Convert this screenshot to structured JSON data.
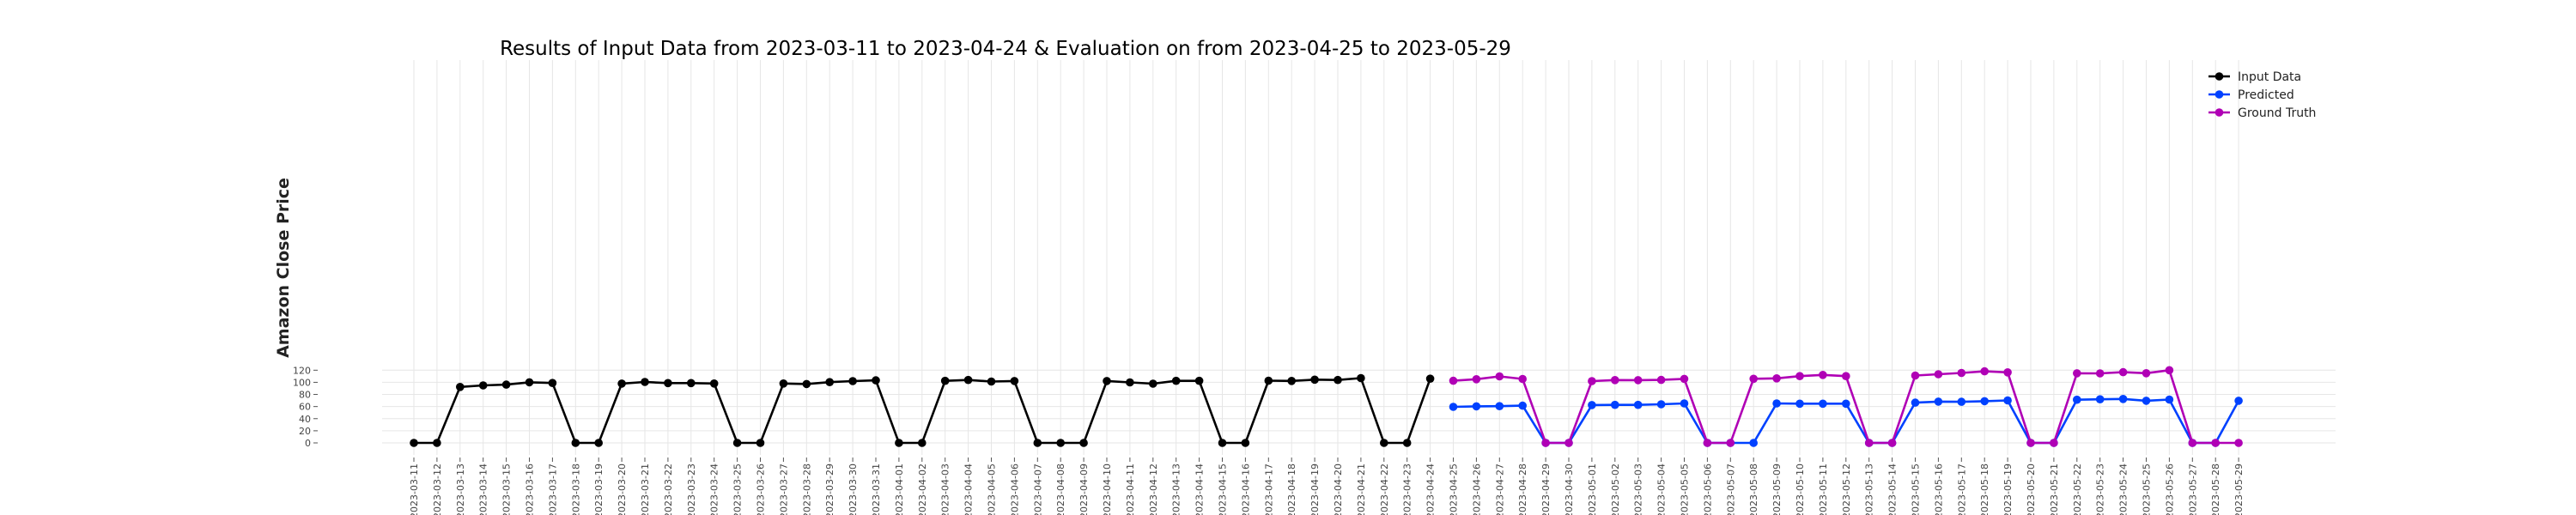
{
  "chart_data": {
    "type": "line",
    "title": "Results of Input Data from 2023-03-11 to 2023-04-24 & Evaluation on from 2023-04-25 to 2023-05-29",
    "ylabel": "Amazon Close Price",
    "xlabel": "",
    "ylim": [
      -5,
      126
    ],
    "yticks": [
      0,
      20,
      40,
      60,
      80,
      100,
      120
    ],
    "grid": true,
    "legend_position": "top-right",
    "categories": [
      "2023-03-11",
      "2023-03-12",
      "2023-03-13",
      "2023-03-14",
      "2023-03-15",
      "2023-03-16",
      "2023-03-17",
      "2023-03-18",
      "2023-03-19",
      "2023-03-20",
      "2023-03-21",
      "2023-03-22",
      "2023-03-23",
      "2023-03-24",
      "2023-03-25",
      "2023-03-26",
      "2023-03-27",
      "2023-03-28",
      "2023-03-29",
      "2023-03-30",
      "2023-03-31",
      "2023-04-01",
      "2023-04-02",
      "2023-04-03",
      "2023-04-04",
      "2023-04-05",
      "2023-04-06",
      "2023-04-07",
      "2023-04-08",
      "2023-04-09",
      "2023-04-10",
      "2023-04-11",
      "2023-04-12",
      "2023-04-13",
      "2023-04-14",
      "2023-04-15",
      "2023-04-16",
      "2023-04-17",
      "2023-04-18",
      "2023-04-19",
      "2023-04-20",
      "2023-04-21",
      "2023-04-22",
      "2023-04-23",
      "2023-04-24",
      "2023-04-25",
      "2023-04-26",
      "2023-04-27",
      "2023-04-28",
      "2023-04-29",
      "2023-04-30",
      "2023-05-01",
      "2023-05-02",
      "2023-05-03",
      "2023-05-04",
      "2023-05-05",
      "2023-05-06",
      "2023-05-07",
      "2023-05-08",
      "2023-05-09",
      "2023-05-10",
      "2023-05-11",
      "2023-05-12",
      "2023-05-13",
      "2023-05-14",
      "2023-05-15",
      "2023-05-16",
      "2023-05-17",
      "2023-05-18",
      "2023-05-19",
      "2023-05-20",
      "2023-05-21",
      "2023-05-22",
      "2023-05-23",
      "2023-05-24",
      "2023-05-25",
      "2023-05-26",
      "2023-05-27",
      "2023-05-28",
      "2023-05-29"
    ],
    "series": [
      {
        "name": "Input Data",
        "color": "#000000",
        "x": [
          "2023-03-11",
          "2023-03-12",
          "2023-03-13",
          "2023-03-14",
          "2023-03-15",
          "2023-03-16",
          "2023-03-17",
          "2023-03-18",
          "2023-03-19",
          "2023-03-20",
          "2023-03-21",
          "2023-03-22",
          "2023-03-23",
          "2023-03-24",
          "2023-03-25",
          "2023-03-26",
          "2023-03-27",
          "2023-03-28",
          "2023-03-29",
          "2023-03-30",
          "2023-03-31",
          "2023-04-01",
          "2023-04-02",
          "2023-04-03",
          "2023-04-04",
          "2023-04-05",
          "2023-04-06",
          "2023-04-07",
          "2023-04-08",
          "2023-04-09",
          "2023-04-10",
          "2023-04-11",
          "2023-04-12",
          "2023-04-13",
          "2023-04-14",
          "2023-04-15",
          "2023-04-16",
          "2023-04-17",
          "2023-04-18",
          "2023-04-19",
          "2023-04-20",
          "2023-04-21",
          "2023-04-22",
          "2023-04-23",
          "2023-04-24"
        ],
        "values": [
          0,
          0,
          92.4,
          94.9,
          96.2,
          100.0,
          98.9,
          0,
          0,
          97.9,
          100.6,
          98.8,
          98.7,
          98.1,
          0,
          0,
          98.0,
          97.2,
          100.3,
          102.0,
          103.3,
          0,
          0,
          102.4,
          103.9,
          101.3,
          102.1,
          0,
          0,
          0,
          102.2,
          99.9,
          97.8,
          102.4,
          102.5,
          0,
          0,
          102.7,
          102.3,
          104.4,
          103.8,
          106.9,
          0,
          0,
          106.0
        ]
      },
      {
        "name": "Predicted",
        "color": "#0041ff",
        "x": [
          "2023-04-25",
          "2023-04-26",
          "2023-04-27",
          "2023-04-28",
          "2023-04-29",
          "2023-04-30",
          "2023-05-01",
          "2023-05-02",
          "2023-05-03",
          "2023-05-04",
          "2023-05-05",
          "2023-05-06",
          "2023-05-07",
          "2023-05-08",
          "2023-05-09",
          "2023-05-10",
          "2023-05-11",
          "2023-05-12",
          "2023-05-13",
          "2023-05-14",
          "2023-05-15",
          "2023-05-16",
          "2023-05-17",
          "2023-05-18",
          "2023-05-19",
          "2023-05-20",
          "2023-05-21",
          "2023-05-22",
          "2023-05-23",
          "2023-05-24",
          "2023-05-25",
          "2023-05-26",
          "2023-05-27",
          "2023-05-28",
          "2023-05-29"
        ],
        "values": [
          59.5,
          60.4,
          60.6,
          61.5,
          0,
          0,
          62.5,
          62.7,
          62.8,
          63.7,
          65.2,
          0,
          0,
          0,
          65.2,
          64.8,
          64.7,
          64.7,
          0,
          0,
          66.4,
          68.2,
          67.8,
          68.9,
          70.2,
          0,
          0,
          71.2,
          72.0,
          72.6,
          69.6,
          71.6,
          0,
          0,
          69.6
        ]
      },
      {
        "name": "Ground Truth",
        "color": "#b000b5",
        "x": [
          "2023-04-25",
          "2023-04-26",
          "2023-04-27",
          "2023-04-28",
          "2023-04-29",
          "2023-04-30",
          "2023-05-01",
          "2023-05-02",
          "2023-05-03",
          "2023-05-04",
          "2023-05-05",
          "2023-05-06",
          "2023-05-07",
          "2023-05-08",
          "2023-05-09",
          "2023-05-10",
          "2023-05-11",
          "2023-05-12",
          "2023-05-13",
          "2023-05-14",
          "2023-05-15",
          "2023-05-16",
          "2023-05-17",
          "2023-05-18",
          "2023-05-19",
          "2023-05-20",
          "2023-05-21",
          "2023-05-22",
          "2023-05-23",
          "2023-05-24",
          "2023-05-25",
          "2023-05-26",
          "2023-05-27",
          "2023-05-28",
          "2023-05-29"
        ],
        "values": [
          102.6,
          105.1,
          109.8,
          105.5,
          0,
          0,
          102.0,
          103.7,
          103.6,
          104.0,
          105.7,
          0,
          0,
          105.8,
          106.6,
          110.2,
          112.2,
          110.3,
          0,
          0,
          111.2,
          113.4,
          115.5,
          118.1,
          116.5,
          0,
          0,
          114.9,
          114.8,
          116.8,
          115.0,
          120.0,
          0,
          0,
          0
        ]
      }
    ]
  }
}
